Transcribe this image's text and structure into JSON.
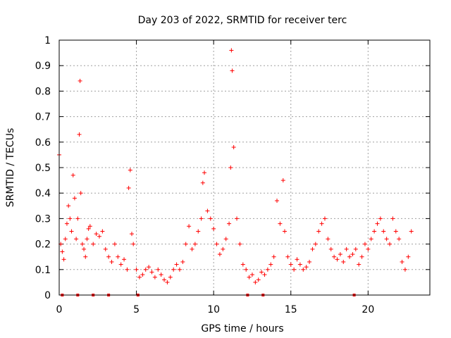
{
  "chart_data": {
    "type": "scatter",
    "title": "Day 203 of 2022, SRMTID for receiver terc",
    "xlabel": "GPS time / hours",
    "ylabel": "SRMTID / TECUs",
    "xlim": [
      0,
      24
    ],
    "ylim": [
      0,
      1
    ],
    "xticks": [
      0,
      5,
      10,
      15,
      20
    ],
    "xtick_labels": [
      "0",
      "5",
      "10",
      "15",
      "20"
    ],
    "yticks": [
      0,
      0.1,
      0.2,
      0.3,
      0.4,
      0.5,
      0.6,
      0.7,
      0.8,
      0.9,
      1
    ],
    "ytick_labels": [
      "0",
      "0.1",
      "0.2",
      "0.3",
      "0.4",
      "0.5",
      "0.6",
      "0.7",
      "0.8",
      "0.9",
      "1"
    ],
    "grid": true,
    "marker": "plus",
    "color": "#ff0000",
    "series": [
      {
        "name": "SRMTID",
        "x": [
          0.0,
          0.1,
          0.2,
          0.3,
          0.4,
          0.5,
          0.6,
          0.7,
          0.8,
          0.9,
          1.0,
          1.1,
          1.2,
          1.3,
          1.35,
          1.4,
          1.5,
          1.6,
          1.7,
          1.8,
          1.9,
          2.0,
          2.2,
          2.4,
          2.6,
          2.8,
          3.0,
          3.2,
          3.4,
          3.6,
          3.8,
          4.0,
          4.2,
          4.4,
          4.5,
          4.6,
          4.7,
          4.8,
          5.0,
          5.2,
          5.4,
          5.6,
          5.8,
          6.0,
          6.2,
          6.4,
          6.6,
          6.8,
          7.0,
          7.2,
          7.4,
          7.6,
          7.8,
          8.0,
          8.2,
          8.4,
          8.6,
          8.8,
          9.0,
          9.2,
          9.3,
          9.4,
          9.6,
          9.8,
          10.0,
          10.2,
          10.4,
          10.6,
          10.8,
          11.0,
          11.1,
          11.15,
          11.2,
          11.3,
          11.5,
          11.7,
          11.9,
          12.1,
          12.3,
          12.5,
          12.7,
          12.9,
          13.1,
          13.3,
          13.5,
          13.7,
          13.9,
          14.1,
          14.3,
          14.5,
          14.6,
          14.8,
          15.0,
          15.2,
          15.4,
          15.6,
          15.8,
          16.0,
          16.2,
          16.4,
          16.6,
          16.8,
          17.0,
          17.2,
          17.4,
          17.6,
          17.8,
          18.0,
          18.2,
          18.4,
          18.6,
          18.8,
          19.0,
          19.2,
          19.4,
          19.6,
          19.8,
          20.0,
          20.2,
          20.4,
          20.6,
          20.8,
          21.0,
          21.2,
          21.4,
          21.6,
          21.8,
          22.0,
          22.2,
          22.4,
          22.6,
          22.8
        ],
        "y": [
          0.55,
          0.2,
          0.17,
          0.14,
          0.22,
          0.28,
          0.35,
          0.3,
          0.25,
          0.47,
          0.38,
          0.22,
          0.3,
          0.63,
          0.84,
          0.4,
          0.2,
          0.18,
          0.15,
          0.22,
          0.26,
          0.27,
          0.2,
          0.24,
          0.23,
          0.25,
          0.18,
          0.15,
          0.13,
          0.2,
          0.15,
          0.12,
          0.14,
          0.1,
          0.42,
          0.49,
          0.24,
          0.2,
          0.1,
          0.07,
          0.08,
          0.1,
          0.11,
          0.09,
          0.07,
          0.1,
          0.08,
          0.06,
          0.05,
          0.07,
          0.1,
          0.12,
          0.1,
          0.13,
          0.2,
          0.27,
          0.18,
          0.2,
          0.25,
          0.3,
          0.44,
          0.48,
          0.33,
          0.3,
          0.26,
          0.2,
          0.16,
          0.18,
          0.22,
          0.28,
          0.5,
          0.96,
          0.88,
          0.58,
          0.3,
          0.2,
          0.12,
          0.1,
          0.07,
          0.08,
          0.05,
          0.06,
          0.09,
          0.08,
          0.1,
          0.12,
          0.15,
          0.37,
          0.28,
          0.45,
          0.25,
          0.15,
          0.12,
          0.1,
          0.14,
          0.12,
          0.1,
          0.11,
          0.13,
          0.18,
          0.2,
          0.25,
          0.28,
          0.3,
          0.22,
          0.18,
          0.15,
          0.14,
          0.16,
          0.13,
          0.18,
          0.15,
          0.16,
          0.18,
          0.12,
          0.15,
          0.2,
          0.18,
          0.22,
          0.25,
          0.28,
          0.3,
          0.25,
          0.22,
          0.2,
          0.3,
          0.25,
          0.22,
          0.13,
          0.1,
          0.15,
          0.25
        ]
      }
    ],
    "zero_markers_x": [
      0.2,
      1.2,
      2.2,
      3.2,
      5.1,
      12.2,
      13.2,
      19.1
    ]
  }
}
